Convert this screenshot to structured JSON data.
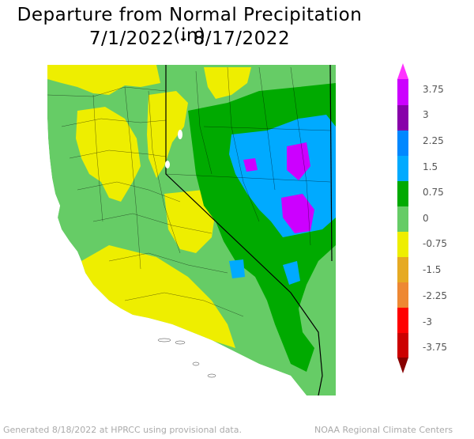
{
  "title": {
    "line1": "Departure from Normal Precipitation (in)",
    "line2": "7/1/2022 - 8/17/2022"
  },
  "legend": {
    "labels": [
      "3.75",
      "3",
      "2.25",
      "1.5",
      "0.75",
      "0",
      "-0.75",
      "-1.5",
      "-2.25",
      "-3",
      "-3.75"
    ],
    "colors": [
      "#ff33ff",
      "#cc00ff",
      "#8800aa",
      "#0088ff",
      "#00aaff",
      "#00aa00",
      "#66cc66",
      "#eeee00",
      "#e6aa22",
      "#ee8833",
      "#ff0000",
      "#cc0000",
      "#880000"
    ]
  },
  "footer": {
    "left": "Generated 8/18/2022 at HPRCC using provisional data.",
    "right": "NOAA Regional Climate Centers"
  }
}
